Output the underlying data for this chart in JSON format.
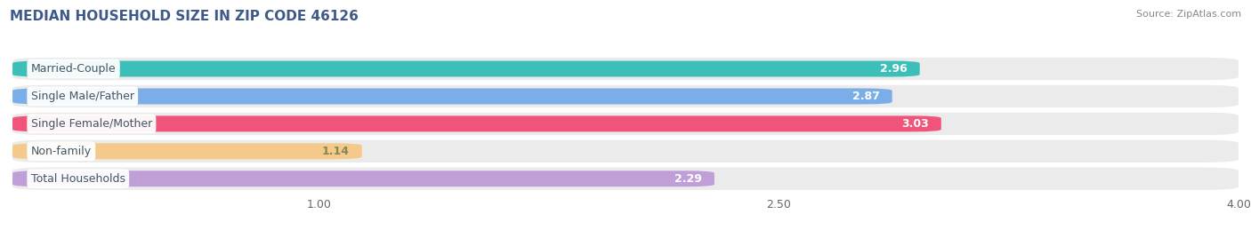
{
  "title": "MEDIAN HOUSEHOLD SIZE IN ZIP CODE 46126",
  "source": "Source: ZipAtlas.com",
  "categories": [
    "Married-Couple",
    "Single Male/Father",
    "Single Female/Mother",
    "Non-family",
    "Total Households"
  ],
  "values": [
    2.96,
    2.87,
    3.03,
    1.14,
    2.29
  ],
  "bar_colors": [
    "#3bbfb8",
    "#7baee8",
    "#f0547a",
    "#f5c98a",
    "#c09fd8"
  ],
  "value_label_colors": [
    "white",
    "white",
    "white",
    "#888855",
    "white"
  ],
  "xlim_start": 0.0,
  "xlim_end": 4.0,
  "xticks": [
    1.0,
    2.5,
    4.0
  ],
  "xtick_labels": [
    "1.00",
    "2.50",
    "4.00"
  ],
  "bar_height": 0.58,
  "row_bg_color": "#ebebeb",
  "label_fontsize": 9,
  "value_fontsize": 9,
  "title_fontsize": 11,
  "source_fontsize": 8,
  "background_color": "#ffffff",
  "title_color": "#3d5a8a",
  "source_color": "#888888",
  "grid_color": "#cccccc",
  "label_text_color": "#445566"
}
